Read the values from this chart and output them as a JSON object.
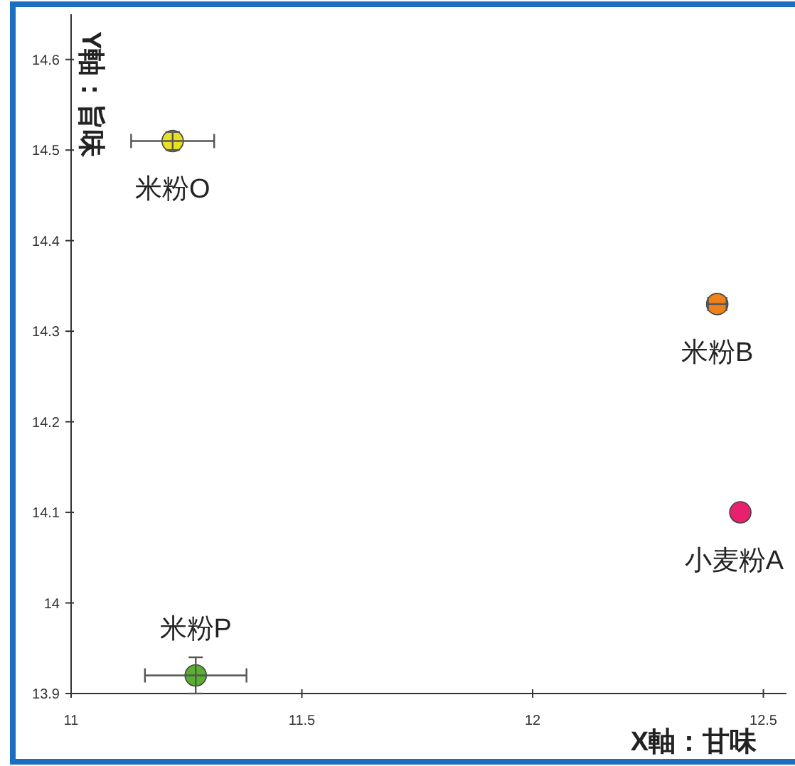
{
  "chart_data": {
    "type": "scatter",
    "xlabel": "X軸：甘味",
    "ylabel": "Y軸：旨味",
    "xlim": [
      11,
      12.55
    ],
    "ylim": [
      13.9,
      14.65
    ],
    "xticks": [
      11,
      11.5,
      12,
      12.5
    ],
    "yticks": [
      13.9,
      14,
      14.1,
      14.2,
      14.3,
      14.4,
      14.5,
      14.6
    ],
    "grid": false,
    "marker": "circle",
    "series": [
      {
        "name": "米粉O",
        "color": "#e8e020",
        "x": [
          11.22
        ],
        "values": [
          14.51
        ],
        "errors": [
          0.01
        ],
        "xerrors": [
          0.09
        ]
      },
      {
        "name": "米粉B",
        "color": "#f08018",
        "x": [
          12.4
        ],
        "values": [
          14.33
        ],
        "errors": [
          null
        ],
        "xerrors": [
          0.02
        ]
      },
      {
        "name": "小麦粉A",
        "color": "#e8206e",
        "x": [
          12.45
        ],
        "values": [
          14.1
        ],
        "errors": [
          null
        ],
        "xerrors": [
          null
        ]
      },
      {
        "name": "米粉P",
        "color": "#58b030",
        "x": [
          11.27
        ],
        "values": [
          13.92
        ],
        "errors": [
          0.02
        ],
        "xerrors": [
          0.11
        ]
      }
    ]
  }
}
